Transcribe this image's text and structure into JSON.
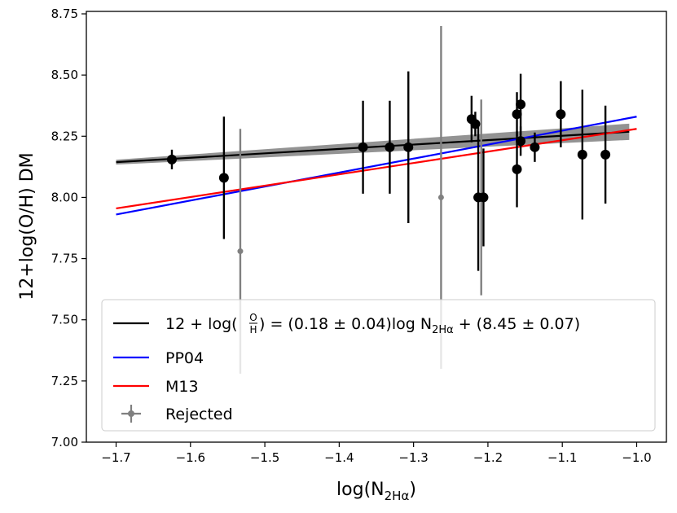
{
  "chart_data": {
    "type": "scatter",
    "xlabel_main": "log(N",
    "xlabel_sub": "2Hα",
    "xlabel_end": ")",
    "ylabel": "12+log(O/H) DM",
    "xlim": [
      -1.74,
      -0.96
    ],
    "ylim": [
      7.0,
      8.76
    ],
    "x_ticks": [
      -1.7,
      -1.6,
      -1.5,
      -1.4,
      -1.3,
      -1.2,
      -1.1,
      -1.0
    ],
    "x_tick_labels": [
      "−1.7",
      "−1.6",
      "−1.5",
      "−1.4",
      "−1.3",
      "−1.2",
      "−1.1",
      "−1.0"
    ],
    "y_ticks": [
      7.0,
      7.25,
      7.5,
      7.75,
      8.0,
      8.25,
      8.5,
      8.75
    ],
    "y_tick_labels": [
      "7.00",
      "7.25",
      "7.50",
      "7.75",
      "8.00",
      "8.25",
      "8.50",
      "8.75"
    ],
    "data_points": [
      {
        "x": -1.625,
        "y": 8.155,
        "err": 0.04
      },
      {
        "x": -1.555,
        "y": 8.08,
        "err": 0.25
      },
      {
        "x": -1.368,
        "y": 8.205,
        "err": 0.19
      },
      {
        "x": -1.332,
        "y": 8.205,
        "err": 0.19
      },
      {
        "x": -1.307,
        "y": 8.205,
        "err": 0.31
      },
      {
        "x": -1.222,
        "y": 8.32,
        "err": 0.095
      },
      {
        "x": -1.217,
        "y": 8.3,
        "err": 0.05
      },
      {
        "x": -1.213,
        "y": 8.0,
        "err": 0.3
      },
      {
        "x": -1.206,
        "y": 8.0,
        "err": 0.2
      },
      {
        "x": -1.161,
        "y": 8.34,
        "err": 0.09
      },
      {
        "x": -1.161,
        "y": 8.115,
        "err": 0.155
      },
      {
        "x": -1.156,
        "y": 8.38,
        "err": 0.125
      },
      {
        "x": -1.156,
        "y": 8.23,
        "err": 0.06
      },
      {
        "x": -1.137,
        "y": 8.205,
        "err": 0.06
      },
      {
        "x": -1.102,
        "y": 8.34,
        "err": 0.135
      },
      {
        "x": -1.073,
        "y": 8.175,
        "err": 0.265
      },
      {
        "x": -1.042,
        "y": 8.175,
        "err": 0.2
      }
    ],
    "rejected_points": [
      {
        "x": -1.533,
        "y": 7.78,
        "err": 0.5
      },
      {
        "x": -1.263,
        "y": 8.0,
        "err": 0.7
      },
      {
        "x": -1.209,
        "y": 8.0,
        "err": 0.4
      }
    ],
    "fit": {
      "slope": 0.18,
      "intercept": 8.45,
      "x_range": [
        -1.7,
        -1.01
      ]
    },
    "pp04_line": {
      "points": [
        [
          -1.7,
          7.93
        ],
        [
          -1.0,
          8.33
        ]
      ]
    },
    "m13_line": {
      "points": [
        [
          -1.7,
          7.955
        ],
        [
          -1.0,
          8.28
        ]
      ]
    },
    "legend": {
      "placement": "lower-center",
      "fit_entry": {
        "prefix": "12 + log(",
        "frac_num": "O",
        "frac_den": "H",
        "mid": ") = (0.18 ± 0.04)log N",
        "sub": "2Hα",
        "suffix": " + (8.45 ± 0.07)"
      },
      "pp04_label": "PP04",
      "m13_label": "M13",
      "rejected_label": "Rejected"
    },
    "colors": {
      "fit": "#000000",
      "fit_band": "#808080",
      "pp04": "#0000ff",
      "m13": "#ff0000",
      "rejected": "#808080",
      "points": "#000000"
    }
  }
}
